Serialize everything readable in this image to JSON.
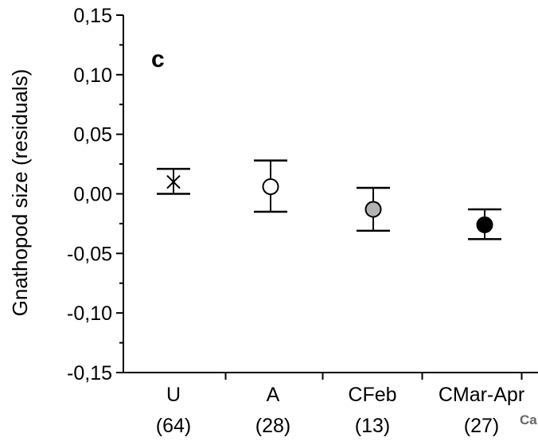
{
  "chart_data": {
    "type": "scatter",
    "panel_label": "c",
    "ylabel": "Gnathopod  size (residuals)",
    "ylim": [
      -0.15,
      0.15
    ],
    "yticks": [
      "0,15",
      "0,10",
      "0,05",
      "0,00",
      "-0,05",
      "-0,10",
      "-0,15"
    ],
    "ytick_values": [
      0.15,
      0.1,
      0.05,
      0.0,
      -0.05,
      -0.1,
      -0.15
    ],
    "categories": [
      "U",
      "A",
      "CFeb",
      "CMar-Apr"
    ],
    "counts": [
      "(64)",
      "(28)",
      "(13)",
      "(27)"
    ],
    "points": [
      {
        "category": "U",
        "mean": 0.01,
        "lower": 0.0,
        "upper": 0.021,
        "marker": "x",
        "color": "#000000"
      },
      {
        "category": "A",
        "mean": 0.006,
        "lower": -0.015,
        "upper": 0.028,
        "marker": "circle",
        "color": "#ffffff"
      },
      {
        "category": "CFeb",
        "mean": -0.013,
        "lower": -0.031,
        "upper": 0.005,
        "marker": "circle",
        "color": "#b3b3b3"
      },
      {
        "category": "CMar-Apr",
        "mean": -0.026,
        "lower": -0.038,
        "upper": -0.013,
        "marker": "circle",
        "color": "#000000"
      }
    ],
    "grid": false,
    "cut_text": "Ca"
  }
}
